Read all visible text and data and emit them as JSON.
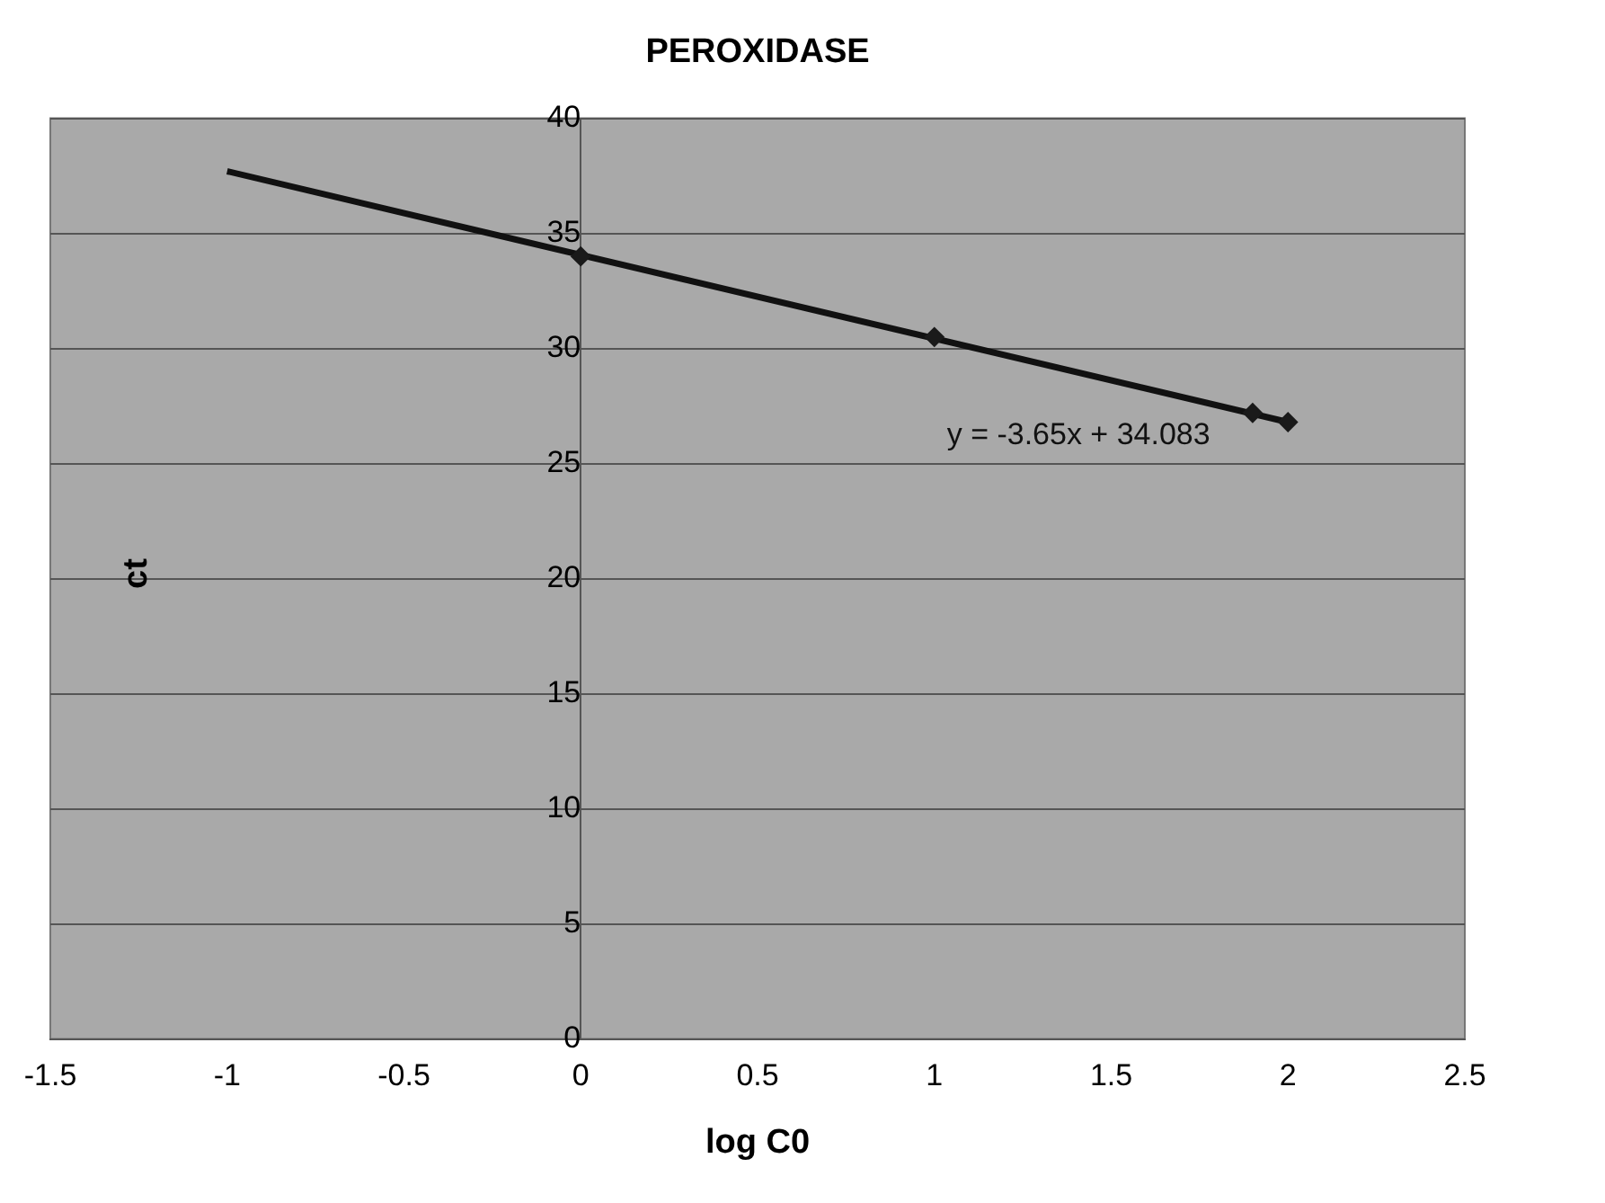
{
  "chart_data": {
    "type": "scatter",
    "title": "PEROXIDASE",
    "xlabel": "log C0",
    "ylabel": "ct",
    "series": [
      {
        "type": "scatter",
        "color": "#1a1a1a",
        "x": [
          0,
          1,
          1.9,
          2
        ],
        "values": [
          34,
          30.5,
          27.2,
          26.8
        ],
        "marker": "diamond"
      },
      {
        "type": "line",
        "color": "#111111",
        "x": [
          -1,
          2
        ],
        "values": [
          37.7,
          26.8
        ],
        "marker": "none"
      }
    ],
    "xlim": [
      -1.5,
      2.5
    ],
    "xticks": [
      -1.5,
      -1,
      -0.5,
      0,
      0.5,
      1,
      1.5,
      2,
      2.5
    ],
    "ylim": [
      0,
      40
    ],
    "yticks": [
      0,
      5,
      10,
      15,
      20,
      25,
      30,
      35,
      40
    ],
    "grid": "y",
    "legend": false,
    "annotations": [
      "y = -3.65x + 34.083"
    ]
  }
}
